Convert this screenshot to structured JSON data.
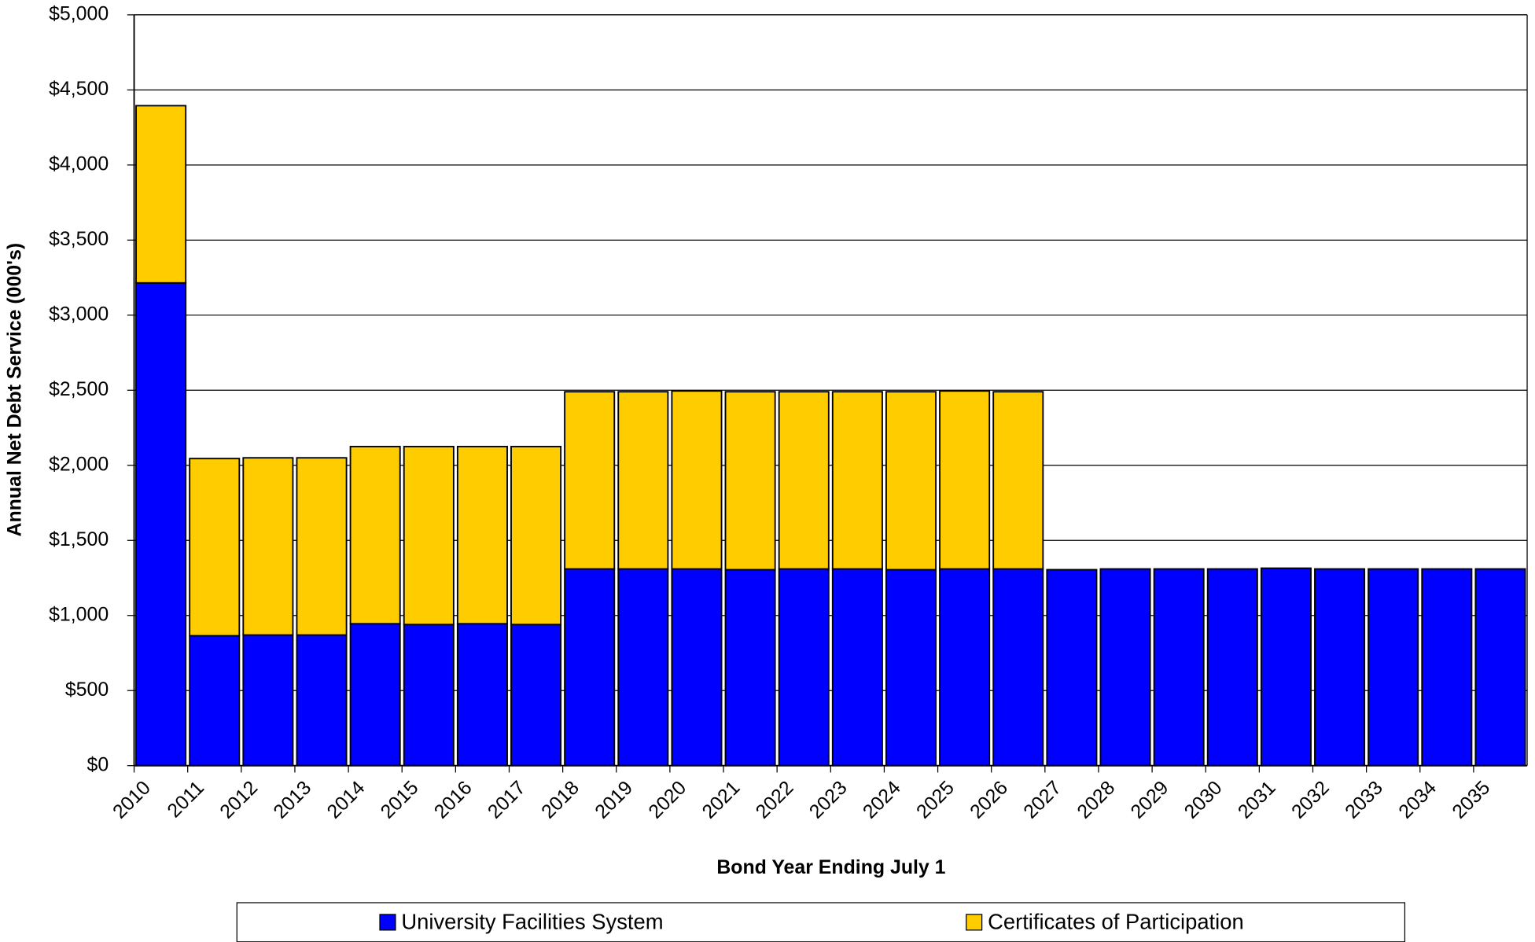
{
  "chart_data": {
    "type": "stacked-bar",
    "xlabel": "Bond Year Ending July 1",
    "ylabel": "Annual Net Debt Service (000's)",
    "categories": [
      "2010",
      "2011",
      "2012",
      "2013",
      "2014",
      "2015",
      "2016",
      "2017",
      "2018",
      "2019",
      "2020",
      "2021",
      "2022",
      "2023",
      "2024",
      "2025",
      "2026",
      "2027",
      "2028",
      "2029",
      "2030",
      "2031",
      "2032",
      "2033",
      "2034",
      "2035"
    ],
    "series": [
      {
        "name": "University Facilities System",
        "color": "#0000ff",
        "values": [
          3215,
          865,
          870,
          870,
          945,
          940,
          945,
          940,
          1310,
          1310,
          1310,
          1305,
          1310,
          1310,
          1305,
          1310,
          1310,
          1305,
          1310,
          1310,
          1310,
          1315,
          1310,
          1310,
          1310,
          1310
        ]
      },
      {
        "name": "Certificates of Participation",
        "color": "#ffcc00",
        "values": [
          1180,
          1180,
          1180,
          1180,
          1180,
          1185,
          1180,
          1185,
          1180,
          1180,
          1185,
          1185,
          1180,
          1180,
          1185,
          1185,
          1180,
          0,
          0,
          0,
          0,
          0,
          0,
          0,
          0,
          0
        ]
      }
    ],
    "ylim": [
      0,
      5000
    ],
    "yticks": [
      {
        "value": 0,
        "label": "$0"
      },
      {
        "value": 500,
        "label": "$500"
      },
      {
        "value": 1000,
        "label": "$1,000"
      },
      {
        "value": 1500,
        "label": "$1,500"
      },
      {
        "value": 2000,
        "label": "$2,000"
      },
      {
        "value": 2500,
        "label": "$2,500"
      },
      {
        "value": 3000,
        "label": "$3,000"
      },
      {
        "value": 3500,
        "label": "$3,500"
      },
      {
        "value": 4000,
        "label": "$4,000"
      },
      {
        "value": 4500,
        "label": "$4,500"
      },
      {
        "value": 5000,
        "label": "$5,000"
      }
    ],
    "grid": true,
    "legend": "bottom"
  }
}
